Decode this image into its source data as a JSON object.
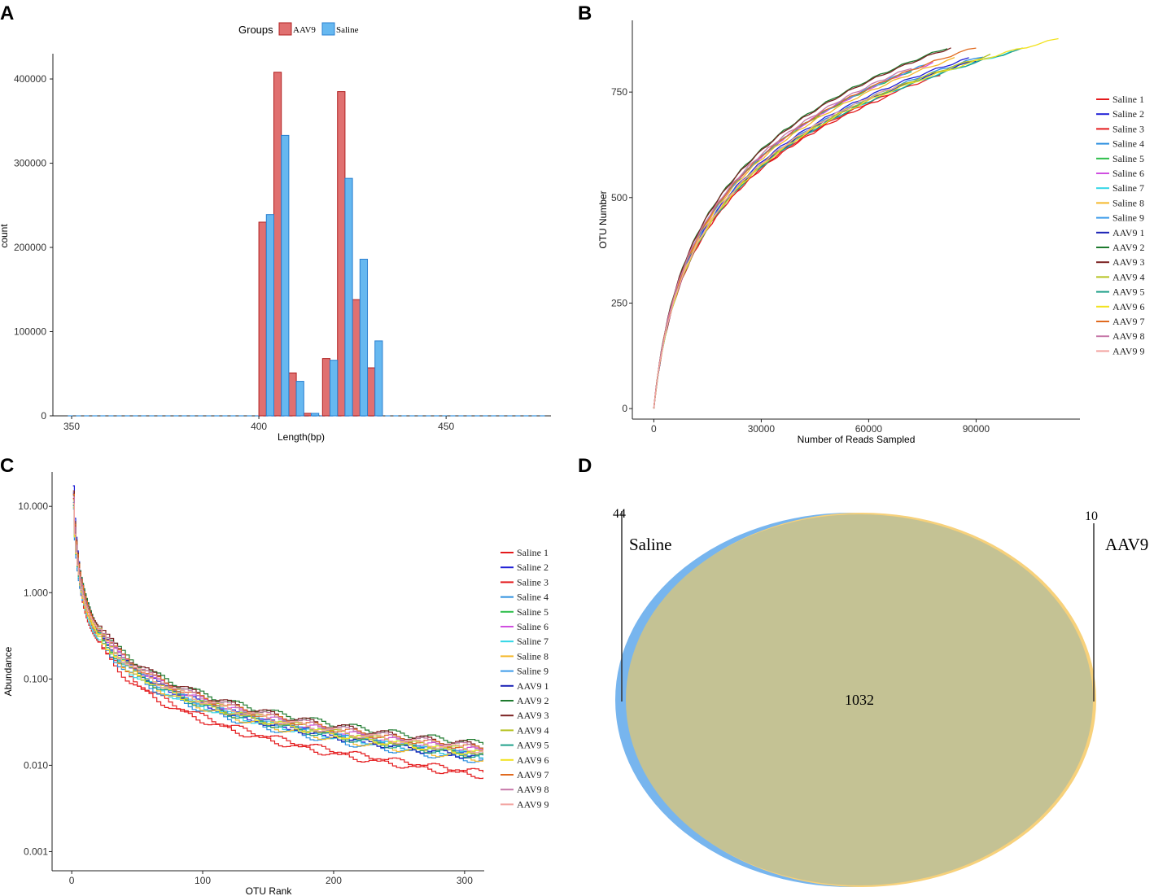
{
  "colors": {
    "aav9": "#E07070",
    "aav9_stroke": "#B02020",
    "saline": "#66B8F0",
    "saline_stroke": "#2A7FD0",
    "venn_saline": "#77B5EE",
    "venn_aav9": "#F7D17B",
    "venn_overlap": "#C4C294"
  },
  "chart_data": [
    {
      "panel": "A",
      "type": "bar",
      "title": "",
      "xlabel": "Length(bp)",
      "ylabel": "count",
      "xlim": [
        345,
        478
      ],
      "ylim": [
        0,
        430000
      ],
      "xticks": [
        350,
        400,
        450
      ],
      "yticks": [
        0,
        100000,
        200000,
        300000,
        400000
      ],
      "legend": {
        "title": "Groups",
        "position": "top",
        "entries": [
          "AAV9",
          "Saline"
        ]
      },
      "bar_width": 2,
      "series": [
        {
          "name": "AAV9",
          "color": "aav9",
          "x": [
            401,
            405,
            409,
            413,
            418,
            422,
            426,
            430
          ],
          "values": [
            230000,
            408000,
            51000,
            3000,
            68000,
            385000,
            138000,
            57000
          ]
        },
        {
          "name": "Saline",
          "color": "saline",
          "x": [
            403,
            407,
            411,
            415,
            420,
            424,
            428,
            432
          ],
          "values": [
            239000,
            333000,
            41000,
            3000,
            66000,
            282000,
            186000,
            89000
          ]
        }
      ]
    },
    {
      "panel": "B",
      "type": "line",
      "title": "",
      "xlabel": "Number of Reads Sampled",
      "ylabel": "OTU Number",
      "xlim": [
        -6000,
        119000
      ],
      "ylim": [
        -25,
        920
      ],
      "xticks": [
        0,
        30000,
        60000,
        90000
      ],
      "yticks": [
        0,
        250,
        500,
        750
      ],
      "legend": {
        "position": "right"
      },
      "series": [
        {
          "name": "Saline 1",
          "color": "#E41A1C",
          "xmax": 66000,
          "ymax": 742
        },
        {
          "name": "Saline 2",
          "color": "#1F1FD6",
          "xmax": 88000,
          "ymax": 830
        },
        {
          "name": "Saline 3",
          "color": "#E41A1C",
          "xmax": 80000,
          "ymax": 790
        },
        {
          "name": "Saline 4",
          "color": "#2C8FE0",
          "xmax": 92000,
          "ymax": 835
        },
        {
          "name": "Saline 5",
          "color": "#2DBE4A",
          "xmax": 72000,
          "ymax": 800
        },
        {
          "name": "Saline 6",
          "color": "#D04FE0",
          "xmax": 78000,
          "ymax": 820
        },
        {
          "name": "Saline 7",
          "color": "#32D6E6",
          "xmax": 100000,
          "ymax": 845
        },
        {
          "name": "Saline 8",
          "color": "#F5B82A",
          "xmax": 84000,
          "ymax": 830
        },
        {
          "name": "Saline 9",
          "color": "#3C9BEA",
          "xmax": 76000,
          "ymax": 815
        },
        {
          "name": "AAV9 1",
          "color": "#1A22B5",
          "xmax": 90000,
          "ymax": 825
        },
        {
          "name": "AAV9 2",
          "color": "#1E7A2E",
          "xmax": 82000,
          "ymax": 855
        },
        {
          "name": "AAV9 3",
          "color": "#7B2222",
          "xmax": 83000,
          "ymax": 855
        },
        {
          "name": "AAV9 4",
          "color": "#B5C21F",
          "xmax": 94000,
          "ymax": 838
        },
        {
          "name": "AAV9 5",
          "color": "#1FA08A",
          "xmax": 103000,
          "ymax": 852
        },
        {
          "name": "AAV9 6",
          "color": "#F2E21F",
          "xmax": 113000,
          "ymax": 876
        },
        {
          "name": "AAV9 7",
          "color": "#E06A1F",
          "xmax": 90000,
          "ymax": 856
        },
        {
          "name": "AAV9 8",
          "color": "#C678A8",
          "xmax": 72000,
          "ymax": 808
        },
        {
          "name": "AAV9 9",
          "color": "#F3A3A0",
          "xmax": 68000,
          "ymax": 765
        }
      ]
    },
    {
      "panel": "C",
      "type": "line",
      "title": "",
      "xlabel": "OTU Rank",
      "ylabel": "Abundance",
      "yscale": "log",
      "xlim": [
        -15,
        315
      ],
      "ylim": [
        0.0006,
        25
      ],
      "xticks": [
        0,
        100,
        200,
        300
      ],
      "yticks": [
        0.001,
        0.01,
        0.1,
        1,
        10
      ],
      "ytick_labels": [
        "0.001",
        "0.010",
        "0.100",
        "1.000",
        "10.000"
      ],
      "legend": {
        "position": "right"
      },
      "series": [
        {
          "name": "Saline 1",
          "color": "#E41A1C",
          "start": 14,
          "end": 0.0082
        },
        {
          "name": "Saline 2",
          "color": "#1F1FD6",
          "start": 16,
          "end": 0.0125
        },
        {
          "name": "Saline 3",
          "color": "#E41A1C",
          "start": 12,
          "end": 0.0075
        },
        {
          "name": "Saline 4",
          "color": "#2C8FE0",
          "start": 10,
          "end": 0.0112
        },
        {
          "name": "Saline 5",
          "color": "#2DBE4A",
          "start": 11,
          "end": 0.0138
        },
        {
          "name": "Saline 6",
          "color": "#D04FE0",
          "start": 13,
          "end": 0.0145
        },
        {
          "name": "Saline 7",
          "color": "#32D6E6",
          "start": 9,
          "end": 0.0128
        },
        {
          "name": "Saline 8",
          "color": "#F5B82A",
          "start": 11,
          "end": 0.0118
        },
        {
          "name": "Saline 9",
          "color": "#3C9BEA",
          "start": 12,
          "end": 0.0133
        },
        {
          "name": "AAV9 1",
          "color": "#1A22B5",
          "start": 15,
          "end": 0.0122
        },
        {
          "name": "AAV9 2",
          "color": "#1E7A2E",
          "start": 13,
          "end": 0.0178
        },
        {
          "name": "AAV9 3",
          "color": "#7B2222",
          "start": 14,
          "end": 0.0168
        },
        {
          "name": "AAV9 4",
          "color": "#B5C21F",
          "start": 12,
          "end": 0.0142
        },
        {
          "name": "AAV9 5",
          "color": "#1FA08A",
          "start": 11,
          "end": 0.0126
        },
        {
          "name": "AAV9 6",
          "color": "#F2E21F",
          "start": 10,
          "end": 0.0135
        },
        {
          "name": "AAV9 7",
          "color": "#E06A1F",
          "start": 13,
          "end": 0.0155
        },
        {
          "name": "AAV9 8",
          "color": "#C678A8",
          "start": 12,
          "end": 0.016
        },
        {
          "name": "AAV9 9",
          "color": "#F3A3A0",
          "start": 11,
          "end": 0.0148
        }
      ]
    },
    {
      "panel": "D",
      "type": "venn",
      "sets": [
        {
          "name": "Saline",
          "unique": 44,
          "color": "venn_saline"
        },
        {
          "name": "AAV9",
          "unique": 10,
          "color": "venn_aav9"
        }
      ],
      "intersection": 1032
    }
  ],
  "panel_labels": [
    "A",
    "B",
    "C",
    "D"
  ]
}
